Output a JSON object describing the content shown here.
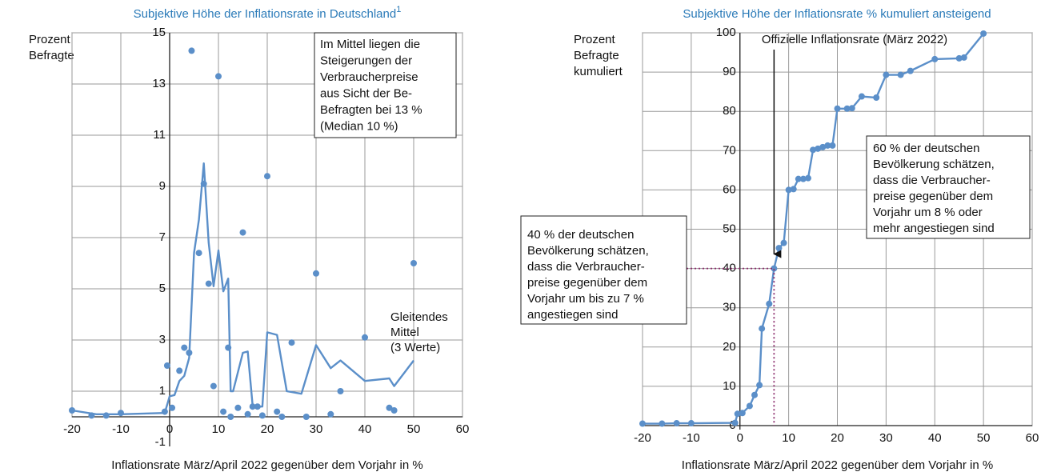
{
  "chart_data": [
    {
      "type": "scatter",
      "title": "Subjektive Höhe der Inflationsrate in Deutschland",
      "title_footnote": "1",
      "y_label": [
        "Prozent",
        "Befragte"
      ],
      "x_label": "Inflationsrate März/April 2022 gegenüber dem Vorjahr in %",
      "xlim": [
        -20,
        60
      ],
      "xticks": [
        -20,
        -10,
        0,
        10,
        20,
        30,
        40,
        50,
        60
      ],
      "ylim": [
        -1,
        15
      ],
      "yticks": [
        -1,
        1,
        3,
        5,
        7,
        9,
        11,
        13,
        15
      ],
      "grid": true,
      "series": [
        {
          "color": "#5b8fc9",
          "x": [
            -20,
            -16,
            -13,
            -10,
            -1,
            -0.5,
            0.5,
            2,
            3,
            4,
            4.5,
            6,
            7,
            8,
            9,
            10,
            11,
            12,
            12.5,
            14,
            15,
            16,
            17,
            18,
            19,
            20,
            22,
            23,
            25,
            28,
            30,
            33,
            35,
            40,
            45,
            46,
            50
          ],
          "values": [
            0.25,
            0.05,
            0.05,
            0.15,
            0.2,
            2,
            0.35,
            1.8,
            2.7,
            2.5,
            14.3,
            6.4,
            9.1,
            5.2,
            1.2,
            13.3,
            0.2,
            2.7,
            0,
            0.35,
            7.2,
            0.1,
            0.4,
            0.4,
            0.05,
            9.4,
            0.2,
            0,
            2.9,
            0,
            5.6,
            0.1,
            1,
            3.1,
            0.35,
            0.25,
            6
          ]
        },
        {
          "type": "line",
          "color": "#5b8fc9",
          "x": [
            -20,
            -15,
            -10,
            -1,
            0,
            1,
            2,
            3,
            4,
            5,
            6,
            7,
            8,
            9,
            10,
            11,
            12,
            12.5,
            13,
            15,
            16,
            17,
            18,
            19,
            20,
            22,
            24,
            27,
            30,
            33,
            35,
            40,
            45,
            46,
            50
          ],
          "values": [
            0.25,
            0.1,
            0.1,
            0.15,
            0.8,
            0.85,
            1.4,
            1.6,
            2.3,
            6.4,
            7.7,
            9.9,
            6.8,
            5.1,
            6.5,
            4.9,
            5.4,
            1,
            1,
            2.5,
            2.55,
            0.45,
            0.4,
            0.4,
            3.3,
            3.2,
            1,
            0.9,
            2.8,
            1.9,
            2.2,
            1.4,
            1.5,
            1.2,
            2.2
          ]
        }
      ],
      "annotations": [
        {
          "lines": [
            "Im Mittel liegen die",
            "Steigerungen der",
            "Verbraucherpreise",
            "aus Sicht der Be-",
            "Befragten bei 13 %",
            "(Median 10 %)"
          ]
        },
        {
          "lines": [
            "Gleitendes",
            "Mittel",
            "(3 Werte)"
          ]
        }
      ]
    },
    {
      "type": "line",
      "markers": true,
      "title": "Subjektive Höhe der Inflationsrate % kumuliert ansteigend",
      "y_label": [
        "Prozent",
        "Befragte",
        "kumuliert"
      ],
      "x_label": "Inflationsrate März/April 2022 gegenüber dem Vorjahr in %",
      "xlim": [
        -20,
        60
      ],
      "xticks": [
        -20,
        -10,
        0,
        10,
        20,
        30,
        40,
        50,
        60
      ],
      "ylim": [
        0,
        100
      ],
      "yticks": [
        0,
        10,
        20,
        30,
        40,
        50,
        60,
        70,
        80,
        90,
        100
      ],
      "grid": true,
      "series": [
        {
          "color": "#5b8fc9",
          "x": [
            -20,
            -16,
            -13,
            -10,
            -1,
            -0.5,
            0.5,
            2,
            3,
            4,
            4.5,
            6,
            7,
            8,
            9,
            10,
            11,
            12,
            13,
            14,
            15,
            16,
            17,
            18,
            19,
            20,
            22,
            23,
            25,
            28,
            30,
            33,
            35,
            40,
            45,
            46,
            50
          ],
          "values": [
            0.5,
            0.5,
            0.6,
            0.6,
            0.7,
            3,
            3.2,
            5,
            7.8,
            10.3,
            24.7,
            31,
            40,
            45.2,
            46.5,
            60,
            60.2,
            62.8,
            62.8,
            63,
            70.2,
            70.5,
            70.9,
            71.3,
            71.3,
            80.7,
            80.7,
            80.8,
            83.8,
            83.5,
            89.3,
            89.3,
            90.3,
            93.3,
            93.5,
            93.7,
            99.8
          ]
        }
      ],
      "annotations": [
        {
          "lines": [
            "Offizielle Inflationsrate (März 2022)"
          ]
        },
        {
          "lines": [
            "60 % der deutschen",
            "Bevölkerung schätzen,",
            "dass die Verbraucher-",
            "preise gegenüber dem",
            "Vorjahr um 8 % oder",
            "mehr angestiegen sind"
          ]
        },
        {
          "lines": [
            "40 % der deutschen",
            "Bevölkerung schätzen,",
            "dass die Verbraucher-",
            "preise gegenüber dem",
            "Vorjahr um bis zu 7 %",
            "angestiegen sind"
          ]
        }
      ]
    }
  ]
}
